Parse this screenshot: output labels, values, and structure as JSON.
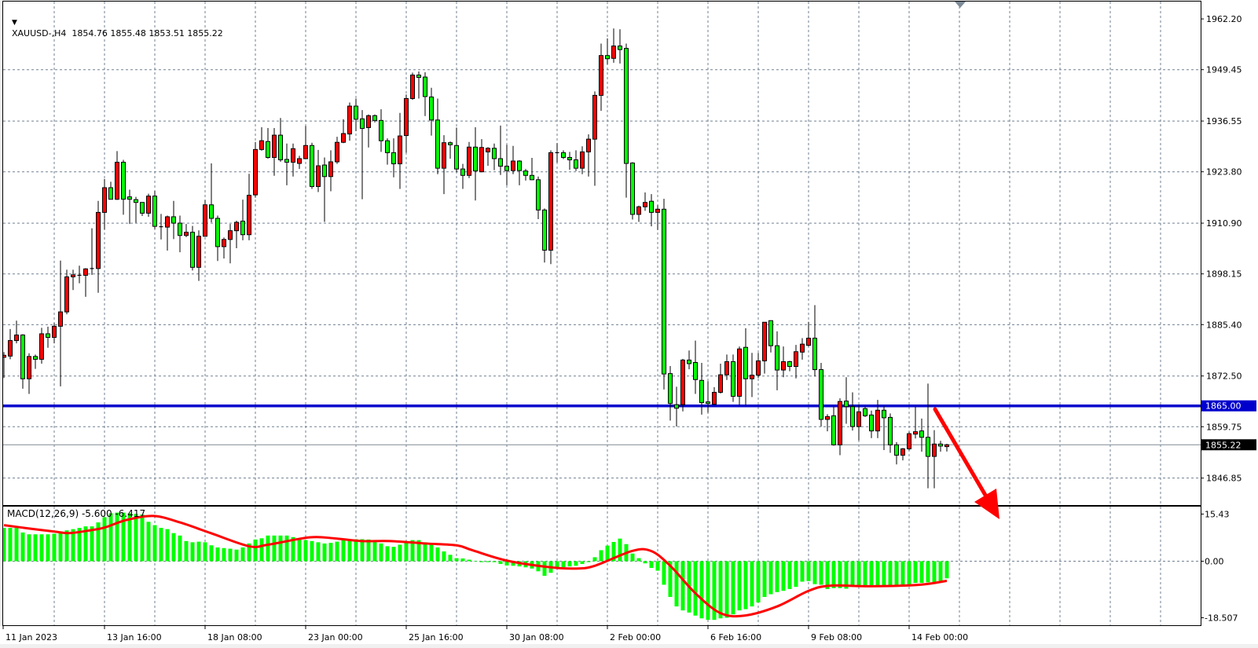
{
  "header": {
    "symbol_timeframe": "XAUUSD-,H4",
    "ohlc_readout": "1854.76 1855.48 1853.51 1855.22",
    "menu_icon": "triangle-down-icon"
  },
  "colors": {
    "bull_body": "#ff0000",
    "bear_body": "#00ff00",
    "grid": "#708090",
    "horizontal_line": "#0000cc",
    "macd_histogram": "#00ff00",
    "macd_signal": "#ff0000",
    "annotation_arrow": "#ff0000"
  },
  "price_axis": {
    "labels": [
      "1962.20",
      "1949.45",
      "1936.55",
      "1923.80",
      "1910.90",
      "1898.15",
      "1885.40",
      "1872.50",
      "1859.75",
      "1846.85"
    ],
    "horizontal_line_label": "1865.00",
    "current_price_label": "1855.22"
  },
  "horizontal_line_price": 1865.0,
  "current_price": 1855.22,
  "macd": {
    "title": "MACD(12,26,9) -5.600 -6.417",
    "axis_labels": [
      "15.43",
      "0.00",
      "-18.507"
    ],
    "histogram": [
      10.9,
      10.9,
      10.9,
      9.4,
      8.8,
      8.8,
      8.8,
      8.8,
      9.0,
      9.7,
      10.1,
      10.5,
      10.9,
      11.4,
      11.4,
      12.7,
      14.4,
      15.7,
      15.9,
      15.9,
      15.7,
      15.5,
      15.3,
      12.9,
      11.8,
      10.9,
      10.5,
      9.2,
      8.4,
      6.6,
      6.2,
      6.4,
      6.2,
      5.2,
      4.5,
      4.3,
      4.1,
      3.8,
      4.5,
      5.8,
      7.1,
      7.5,
      8.4,
      8.4,
      8.4,
      8.4,
      7.9,
      7.5,
      6.9,
      6.6,
      6.2,
      5.8,
      6.0,
      6.4,
      7.1,
      7.2,
      7.2,
      7.2,
      7.1,
      6.6,
      5.8,
      4.9,
      4.7,
      5.4,
      6.2,
      6.9,
      6.9,
      6.2,
      5.4,
      4.5,
      3.2,
      2.1,
      1.0,
      0.9,
      0.5,
      0.0,
      -0.3,
      -0.3,
      -0.3,
      -0.9,
      -1.4,
      -1.5,
      -1.7,
      -2.0,
      -2.4,
      -3.3,
      -4.8,
      -3.8,
      -2.4,
      -2.0,
      -1.7,
      -1.5,
      -0.9,
      -0.3,
      1.3,
      3.6,
      5.1,
      6.3,
      7.4,
      5.6,
      2.5,
      1.0,
      -0.7,
      -2.2,
      -3.1,
      -7.7,
      -11.7,
      -14.8,
      -16.1,
      -16.8,
      -17.8,
      -18.7,
      -19.2,
      -19.2,
      -18.7,
      -18.5,
      -17.4,
      -16.1,
      -15.7,
      -14.8,
      -13.5,
      -11.7,
      -10.8,
      -10.1,
      -9.7,
      -9.1,
      -8.4,
      -6.7,
      -6.5,
      -7.5,
      -7.7,
      -9.1,
      -8.8,
      -8.8,
      -9.0,
      -8.4,
      -8.2,
      -8.4,
      -8.2,
      -8.2,
      -8.2,
      -7.9,
      -7.9,
      -7.7,
      -7.7,
      -7.1,
      -7.1,
      -6.9,
      -6.9,
      -6.5,
      -5.6
    ],
    "signal": [
      [
        1,
        11.8
      ],
      [
        5,
        10.7
      ],
      [
        9,
        9.7
      ],
      [
        11.4,
        9.2
      ],
      [
        14.7,
        10.1
      ],
      [
        17,
        11.0
      ],
      [
        20.5,
        13.5
      ],
      [
        24.8,
        14.8
      ],
      [
        29,
        12.7
      ],
      [
        33.9,
        9.2
      ],
      [
        40,
        4.9
      ],
      [
        43,
        5.4
      ],
      [
        49.6,
        7.8
      ],
      [
        53.5,
        7.5
      ],
      [
        57.8,
        6.6
      ],
      [
        62.5,
        6.6
      ],
      [
        68,
        5.8
      ],
      [
        73,
        5.2
      ],
      [
        75.5,
        3.6
      ],
      [
        81,
        0.2
      ],
      [
        88,
        -2.0
      ],
      [
        92,
        -2.4
      ],
      [
        95,
        -1.5
      ],
      [
        101,
        3.4
      ],
      [
        104,
        3.3
      ],
      [
        107,
        -1.5
      ],
      [
        111,
        -10.5
      ],
      [
        115,
        -17.0
      ],
      [
        118.8,
        -17.8
      ],
      [
        124,
        -14.8
      ],
      [
        129,
        -9.7
      ],
      [
        132.5,
        -8.0
      ],
      [
        139,
        -8.2
      ],
      [
        146.7,
        -7.7
      ],
      [
        151,
        -6.417
      ]
    ]
  },
  "time_axis": {
    "labels": [
      {
        "bar": 1,
        "text": "11 Jan 2023"
      },
      {
        "bar": 17,
        "text": "13 Jan 16:00"
      },
      {
        "bar": 33,
        "text": "18 Jan 08:00"
      },
      {
        "bar": 49,
        "text": "23 Jan 00:00"
      },
      {
        "bar": 65,
        "text": "25 Jan 16:00"
      },
      {
        "bar": 81,
        "text": "30 Jan 08:00"
      },
      {
        "bar": 97,
        "text": "2 Feb 00:00"
      },
      {
        "bar": 113,
        "text": "6 Feb 16:00"
      },
      {
        "bar": 129,
        "text": "9 Feb 08:00"
      },
      {
        "bar": 145,
        "text": "14 Feb 00:00"
      }
    ]
  },
  "chart_data": {
    "type": "candlestick",
    "symbol": "XAUUSD-",
    "timeframe": "H4",
    "ylim": [
      1846.85,
      1962.2
    ],
    "grid": true,
    "ohlc": [
      [
        1877.2,
        1878.5,
        1872.0,
        1877.7
      ],
      [
        1877.5,
        1884.3,
        1876.7,
        1881.4
      ],
      [
        1881.4,
        1886.4,
        1880.7,
        1882.8
      ],
      [
        1882.8,
        1883.0,
        1869.3,
        1871.8
      ],
      [
        1871.8,
        1878.2,
        1868.0,
        1877.4
      ],
      [
        1877.4,
        1877.9,
        1874.3,
        1876.7
      ],
      [
        1876.7,
        1884.6,
        1875.6,
        1883.1
      ],
      [
        1883.1,
        1884.9,
        1879.6,
        1882.2
      ],
      [
        1882.2,
        1885.8,
        1880.7,
        1885.0
      ],
      [
        1885.0,
        1901.5,
        1869.9,
        1888.6
      ],
      [
        1888.6,
        1899.2,
        1888.0,
        1897.4
      ],
      [
        1897.4,
        1899.2,
        1894.1,
        1897.9
      ],
      [
        1897.7,
        1900.2,
        1895.8,
        1897.8
      ],
      [
        1897.8,
        1899.6,
        1892.4,
        1899.4
      ],
      [
        1899.4,
        1909.6,
        1897.9,
        1899.5
      ],
      [
        1899.5,
        1916.5,
        1893.4,
        1913.6
      ],
      [
        1913.6,
        1922.0,
        1909.3,
        1919.8
      ],
      [
        1919.8,
        1921.3,
        1916.9,
        1916.9
      ],
      [
        1916.9,
        1929.0,
        1916.7,
        1926.2
      ],
      [
        1926.2,
        1926.8,
        1913.0,
        1916.9
      ],
      [
        1917.5,
        1919.3,
        1910.7,
        1916.9
      ],
      [
        1916.8,
        1917.5,
        1911.0,
        1916.1
      ],
      [
        1916.1,
        1916.2,
        1912.7,
        1913.4
      ],
      [
        1913.4,
        1918.3,
        1912.5,
        1917.7
      ],
      [
        1917.7,
        1919.0,
        1909.4,
        1910.1
      ],
      [
        1910.0,
        1913.2,
        1906.8,
        1909.9
      ],
      [
        1909.9,
        1912.8,
        1904.0,
        1912.5
      ],
      [
        1912.5,
        1916.5,
        1906.9,
        1910.9
      ],
      [
        1910.9,
        1912.8,
        1903.6,
        1907.8
      ],
      [
        1907.8,
        1910.7,
        1907.4,
        1908.6
      ],
      [
        1908.6,
        1910.2,
        1899.0,
        1899.8
      ],
      [
        1899.8,
        1909.1,
        1896.4,
        1907.6
      ],
      [
        1907.6,
        1916.7,
        1907.5,
        1915.5
      ],
      [
        1915.5,
        1925.9,
        1911.1,
        1912.1
      ],
      [
        1912.1,
        1912.8,
        1901.4,
        1905.0
      ],
      [
        1905.0,
        1907.3,
        1902.0,
        1906.8
      ],
      [
        1906.8,
        1910.7,
        1900.8,
        1909.0
      ],
      [
        1909.0,
        1911.5,
        1904.6,
        1911.1
      ],
      [
        1911.4,
        1916.8,
        1906.6,
        1908.0
      ],
      [
        1908.0,
        1923.3,
        1906.6,
        1917.9
      ],
      [
        1918.0,
        1931.3,
        1917.3,
        1929.4
      ],
      [
        1929.4,
        1935.0,
        1929.1,
        1931.6
      ],
      [
        1931.4,
        1934.8,
        1927.1,
        1927.4
      ],
      [
        1927.4,
        1934.8,
        1922.8,
        1933.0
      ],
      [
        1933.0,
        1937.3,
        1926.3,
        1926.8
      ],
      [
        1926.9,
        1930.9,
        1920.4,
        1926.2
      ],
      [
        1926.2,
        1930.9,
        1922.6,
        1929.6
      ],
      [
        1925.9,
        1927.8,
        1924.5,
        1927.1
      ],
      [
        1927.1,
        1935.3,
        1927.0,
        1930.4
      ],
      [
        1930.4,
        1931.1,
        1919.5,
        1920.1
      ],
      [
        1920.1,
        1929.3,
        1918.7,
        1925.3
      ],
      [
        1925.5,
        1927.4,
        1911.2,
        1922.6
      ],
      [
        1922.6,
        1929.2,
        1918.9,
        1926.3
      ],
      [
        1926.3,
        1932.6,
        1925.8,
        1931.2
      ],
      [
        1931.2,
        1937.0,
        1931.0,
        1933.4
      ],
      [
        1933.3,
        1941.2,
        1931.6,
        1940.3
      ],
      [
        1940.3,
        1942.2,
        1934.0,
        1937.0
      ],
      [
        1937.1,
        1939.3,
        1916.9,
        1934.7
      ],
      [
        1934.9,
        1938.2,
        1929.9,
        1937.9
      ],
      [
        1937.9,
        1938.2,
        1936.2,
        1936.7
      ],
      [
        1936.7,
        1939.5,
        1928.8,
        1931.6
      ],
      [
        1931.6,
        1932.2,
        1925.6,
        1928.6
      ],
      [
        1928.6,
        1932.2,
        1922.4,
        1925.8
      ],
      [
        1925.8,
        1938.6,
        1919.5,
        1932.8
      ],
      [
        1932.9,
        1943.2,
        1928.6,
        1942.2
      ],
      [
        1942.2,
        1948.7,
        1941.9,
        1948.1
      ],
      [
        1948.1,
        1949.0,
        1942.2,
        1947.5
      ],
      [
        1947.6,
        1948.8,
        1937.8,
        1942.7
      ],
      [
        1942.6,
        1944.9,
        1932.9,
        1936.8
      ],
      [
        1936.8,
        1942.2,
        1923.2,
        1924.7
      ],
      [
        1924.7,
        1933.0,
        1918.2,
        1931.1
      ],
      [
        1931.1,
        1931.4,
        1927.1,
        1930.6
      ],
      [
        1930.4,
        1934.9,
        1923.7,
        1924.5
      ],
      [
        1924.5,
        1925.8,
        1919.5,
        1922.9
      ],
      [
        1922.9,
        1931.3,
        1922.2,
        1930.0
      ],
      [
        1930.0,
        1935.0,
        1916.6,
        1924.0
      ],
      [
        1923.8,
        1932.0,
        1923.7,
        1929.9
      ],
      [
        1928.8,
        1930.0,
        1925.3,
        1929.7
      ],
      [
        1929.7,
        1930.9,
        1924.2,
        1927.1
      ],
      [
        1927.1,
        1935.4,
        1923.0,
        1925.2
      ],
      [
        1925.2,
        1930.6,
        1920.4,
        1924.1
      ],
      [
        1924.1,
        1930.3,
        1923.2,
        1926.5
      ],
      [
        1926.5,
        1926.7,
        1920.4,
        1924.1
      ],
      [
        1924.0,
        1924.5,
        1921.6,
        1922.9
      ],
      [
        1922.9,
        1927.3,
        1921.7,
        1921.8
      ],
      [
        1921.8,
        1922.6,
        1911.9,
        1914.2
      ],
      [
        1914.2,
        1914.6,
        1901.0,
        1904.1
      ],
      [
        1904.1,
        1929.2,
        1900.6,
        1928.6
      ],
      [
        1928.6,
        1931.0,
        1926.1,
        1928.6
      ],
      [
        1928.6,
        1929.2,
        1927.0,
        1927.4
      ],
      [
        1927.4,
        1928.8,
        1924.3,
        1926.8
      ],
      [
        1926.8,
        1929.2,
        1924.0,
        1924.7
      ],
      [
        1924.7,
        1930.2,
        1923.2,
        1928.8
      ],
      [
        1928.8,
        1933.2,
        1922.6,
        1932.0
      ],
      [
        1932.0,
        1944.0,
        1920.3,
        1943.0
      ],
      [
        1943.0,
        1956.0,
        1939.1,
        1953.0
      ],
      [
        1953.0,
        1957.3,
        1950.8,
        1952.2
      ],
      [
        1952.3,
        1959.8,
        1951.2,
        1955.4
      ],
      [
        1955.4,
        1959.6,
        1951.0,
        1954.5
      ],
      [
        1954.8,
        1956.0,
        1917.3,
        1925.9
      ],
      [
        1926.0,
        1926.2,
        1911.8,
        1913.1
      ],
      [
        1913.1,
        1915.3,
        1911.2,
        1915.0
      ],
      [
        1915.0,
        1918.6,
        1914.0,
        1916.1
      ],
      [
        1916.4,
        1918.2,
        1910.1,
        1913.6
      ],
      [
        1913.6,
        1915.4,
        1909.2,
        1914.4
      ],
      [
        1914.4,
        1917.0,
        1869.1,
        1873.0
      ],
      [
        1873.1,
        1875.0,
        1861.3,
        1865.6
      ],
      [
        1865.3,
        1869.8,
        1859.8,
        1864.4
      ],
      [
        1865.3,
        1876.8,
        1863.6,
        1876.5
      ],
      [
        1876.5,
        1878.9,
        1874.2,
        1875.6
      ],
      [
        1875.9,
        1881.4,
        1868.0,
        1871.6
      ],
      [
        1871.4,
        1875.8,
        1862.8,
        1865.8
      ],
      [
        1866.0,
        1871.2,
        1863.3,
        1865.6
      ],
      [
        1865.4,
        1869.7,
        1865.2,
        1868.4
      ],
      [
        1868.4,
        1875.6,
        1868.1,
        1872.8
      ],
      [
        1872.8,
        1877.9,
        1871.5,
        1876.1
      ],
      [
        1876.1,
        1877.9,
        1866.0,
        1867.4
      ],
      [
        1867.4,
        1879.9,
        1865.2,
        1879.3
      ],
      [
        1879.7,
        1884.5,
        1865.2,
        1871.8
      ],
      [
        1871.8,
        1878.3,
        1867.2,
        1872.7
      ],
      [
        1872.7,
        1878.3,
        1872.0,
        1876.3
      ],
      [
        1876.3,
        1886.0,
        1873.1,
        1886.0
      ],
      [
        1886.4,
        1886.5,
        1878.4,
        1880.1
      ],
      [
        1880.1,
        1883.7,
        1868.9,
        1874.0
      ],
      [
        1874.0,
        1879.9,
        1872.2,
        1876.1
      ],
      [
        1876.1,
        1876.3,
        1873.7,
        1874.9
      ],
      [
        1874.9,
        1880.3,
        1871.9,
        1878.6
      ],
      [
        1878.5,
        1882.0,
        1876.6,
        1880.5
      ],
      [
        1880.2,
        1886.1,
        1879.9,
        1882.0
      ],
      [
        1882.0,
        1890.3,
        1872.4,
        1874.1
      ],
      [
        1874.1,
        1875.8,
        1859.8,
        1861.6
      ],
      [
        1861.6,
        1862.9,
        1858.6,
        1862.3
      ],
      [
        1862.5,
        1864.8,
        1855.0,
        1855.2
      ],
      [
        1855.2,
        1866.9,
        1852.6,
        1866.1
      ],
      [
        1866.2,
        1872.2,
        1860.5,
        1864.8
      ],
      [
        1864.8,
        1868.4,
        1858.8,
        1859.8
      ],
      [
        1859.8,
        1865.2,
        1856.3,
        1863.5
      ],
      [
        1864.3,
        1864.8,
        1862.2,
        1862.5
      ],
      [
        1862.7,
        1863.8,
        1856.9,
        1858.7
      ],
      [
        1858.7,
        1866.5,
        1856.9,
        1863.9
      ],
      [
        1863.9,
        1865.0,
        1853.9,
        1862.0
      ],
      [
        1862.1,
        1863.1,
        1853.2,
        1855.2
      ],
      [
        1855.2,
        1855.9,
        1850.3,
        1852.6
      ],
      [
        1852.6,
        1854.4,
        1851.3,
        1854.2
      ],
      [
        1854.2,
        1858.5,
        1853.8,
        1858.0
      ],
      [
        1857.9,
        1864.8,
        1856.8,
        1858.5
      ],
      [
        1858.7,
        1861.8,
        1853.5,
        1857.1
      ],
      [
        1857.1,
        1870.6,
        1844.3,
        1852.3
      ],
      [
        1852.3,
        1858.9,
        1844.3,
        1855.4
      ],
      [
        1855.4,
        1856.2,
        1853.5,
        1854.9
      ],
      [
        1854.76,
        1855.48,
        1853.51,
        1855.22
      ]
    ]
  }
}
